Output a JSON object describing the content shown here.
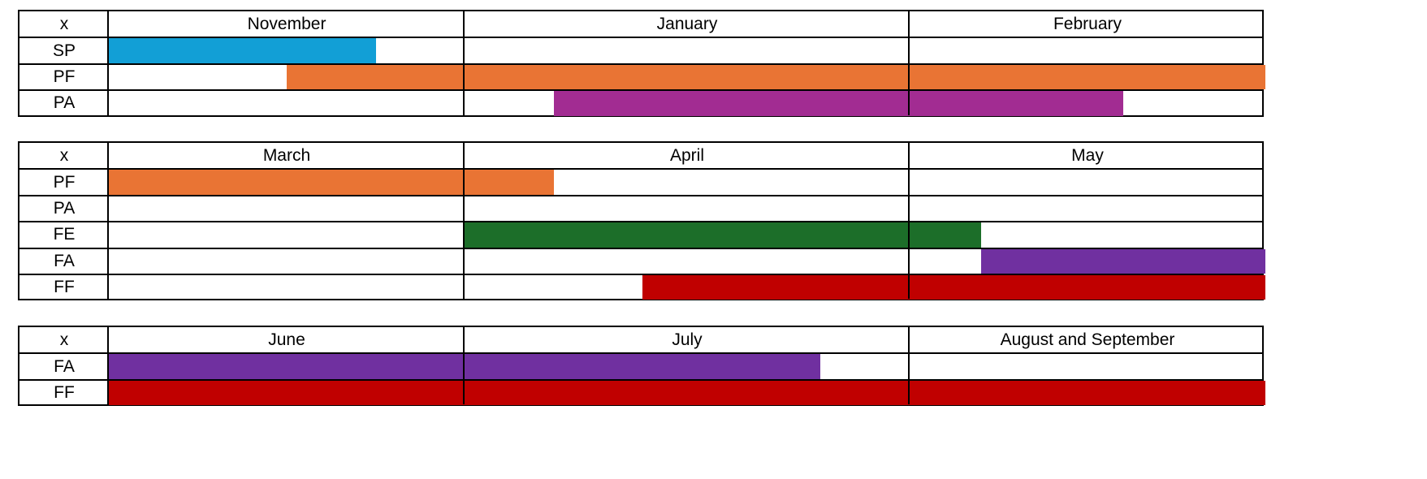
{
  "chart_data": [
    {
      "type": "gantt",
      "corner_label": "x",
      "periods": [
        "November",
        "January",
        "February"
      ],
      "rows": [
        {
          "label": "SP",
          "color": "#129fd6",
          "start": 0.0,
          "end": 0.75
        },
        {
          "label": "PF",
          "color": "#e97434",
          "start": 0.5,
          "end": 3.0
        },
        {
          "label": "PA",
          "color": "#a22c92",
          "start": 1.2,
          "end": 2.6
        }
      ]
    },
    {
      "type": "gantt",
      "corner_label": "x",
      "periods": [
        "March",
        "April",
        "May"
      ],
      "rows": [
        {
          "label": "PF",
          "color": "#e97434",
          "start": 0.0,
          "end": 1.2
        },
        {
          "label": "PA",
          "color": "#a22c92",
          "start": null,
          "end": null
        },
        {
          "label": "FE",
          "color": "#1c6e29",
          "start": 1.0,
          "end": 2.2
        },
        {
          "label": "FA",
          "color": "#7030a0",
          "start": 2.2,
          "end": 3.0
        },
        {
          "label": "FF",
          "color": "#c00000",
          "start": 1.4,
          "end": 3.0
        }
      ]
    },
    {
      "type": "gantt",
      "corner_label": "x",
      "periods": [
        "June",
        "July",
        "August and September"
      ],
      "rows": [
        {
          "label": "FA",
          "color": "#7030a0",
          "start": 0.0,
          "end": 1.8
        },
        {
          "label": "FF",
          "color": "#c00000",
          "start": 0.0,
          "end": 3.0
        }
      ]
    }
  ]
}
